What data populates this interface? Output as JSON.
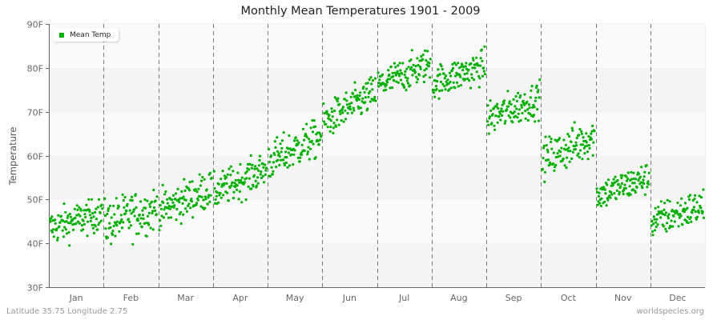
{
  "header": {
    "title": "Monthly Mean Temperatures 1901 - 2009"
  },
  "footer": {
    "location": "Latitude 35.75 Longitude 2.75",
    "source": "worldspecies.org"
  },
  "legend": {
    "label": "Mean Temp",
    "color": "#00b000"
  },
  "axes": {
    "ylabel": "Temperature",
    "yticks": [
      "30F",
      "40F",
      "50F",
      "60F",
      "70F",
      "80F",
      "90F"
    ],
    "xticks": [
      "Jan",
      "Feb",
      "Mar",
      "Apr",
      "May",
      "Jun",
      "Jul",
      "Aug",
      "Sep",
      "Oct",
      "Nov",
      "Dec"
    ]
  },
  "colors": {
    "point": "#00b000",
    "band_light": "#fafafa",
    "band_dark": "#f4f4f4",
    "grid": "#777777",
    "axis": "#666666"
  },
  "chart_data": {
    "type": "scatter",
    "title": "Monthly Mean Temperatures 1901 - 2009",
    "xlabel": "",
    "ylabel": "Temperature",
    "ylim": [
      30,
      90
    ],
    "y_unit": "F",
    "categories": [
      "Jan",
      "Feb",
      "Mar",
      "Apr",
      "May",
      "Jun",
      "Jul",
      "Aug",
      "Sep",
      "Oct",
      "Nov",
      "Dec"
    ],
    "years": [
      1901,
      2009
    ],
    "points_per_month": 109,
    "legend": [
      "Mean Temp"
    ],
    "legend_position": "top-left",
    "grid": "alternating horizontal bands, dashed vertical month separators",
    "series": [
      {
        "name": "Mean Temp",
        "month_summary": [
          {
            "month": "Jan",
            "start_mean": 43.5,
            "end_mean": 47.0,
            "min": 39.0,
            "max": 50.0,
            "spread": 2.0
          },
          {
            "month": "Feb",
            "start_mean": 44.5,
            "end_mean": 48.0,
            "min": 37.5,
            "max": 53.0,
            "spread": 2.6
          },
          {
            "month": "Mar",
            "start_mean": 47.5,
            "end_mean": 52.5,
            "min": 43.0,
            "max": 56.0,
            "spread": 2.2
          },
          {
            "month": "Apr",
            "start_mean": 51.5,
            "end_mean": 57.0,
            "min": 48.0,
            "max": 60.0,
            "spread": 2.0
          },
          {
            "month": "May",
            "start_mean": 58.5,
            "end_mean": 64.5,
            "min": 54.0,
            "max": 68.0,
            "spread": 2.2
          },
          {
            "month": "Jun",
            "start_mean": 67.5,
            "end_mean": 74.5,
            "min": 63.0,
            "max": 79.0,
            "spread": 2.0
          },
          {
            "month": "Jul",
            "start_mean": 76.0,
            "end_mean": 81.0,
            "min": 73.0,
            "max": 86.0,
            "spread": 1.9
          },
          {
            "month": "Aug",
            "start_mean": 76.5,
            "end_mean": 80.5,
            "min": 73.0,
            "max": 85.0,
            "spread": 1.9
          },
          {
            "month": "Sep",
            "start_mean": 68.5,
            "end_mean": 73.0,
            "min": 65.0,
            "max": 78.0,
            "spread": 2.0
          },
          {
            "month": "Oct",
            "start_mean": 59.0,
            "end_mean": 64.5,
            "min": 54.0,
            "max": 70.0,
            "spread": 2.3
          },
          {
            "month": "Nov",
            "start_mean": 51.0,
            "end_mean": 55.0,
            "min": 47.0,
            "max": 58.0,
            "spread": 1.8
          },
          {
            "month": "Dec",
            "start_mean": 45.0,
            "end_mean": 48.5,
            "min": 40.0,
            "max": 54.0,
            "spread": 2.0
          }
        ]
      }
    ]
  }
}
